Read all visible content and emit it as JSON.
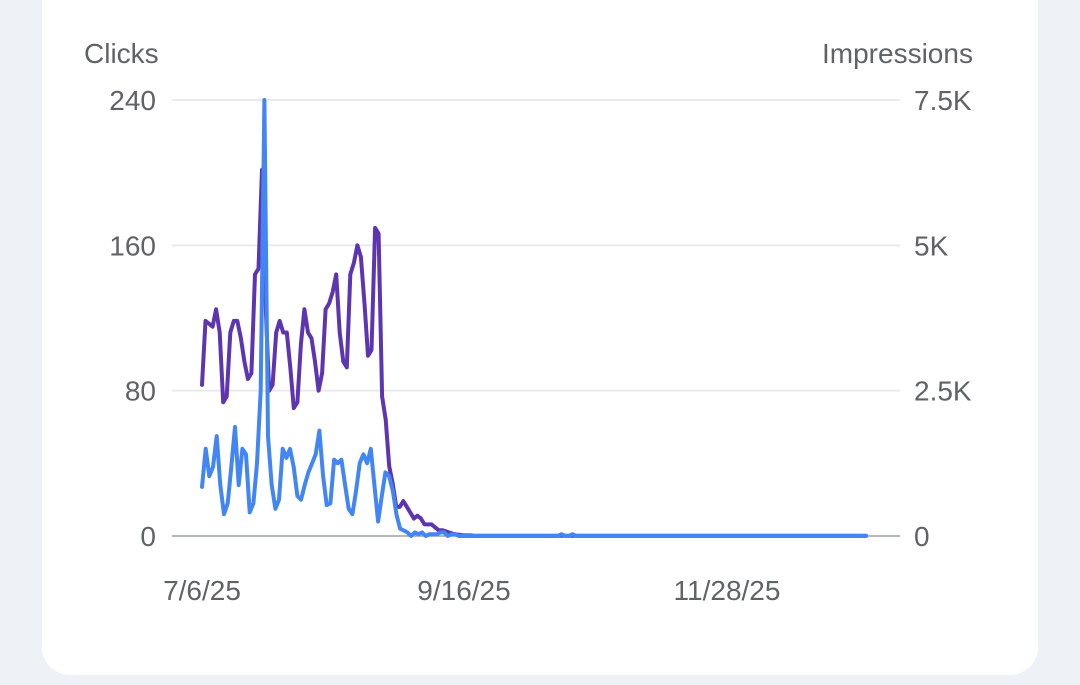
{
  "chart_data": {
    "type": "line",
    "y_left_label": "Clicks",
    "y_right_label": "Impressions",
    "y_left_ticks": [
      "0",
      "80",
      "160",
      "240"
    ],
    "y_right_ticks": [
      "0",
      "2.5K",
      "5K",
      "7.5K"
    ],
    "ylim_left": [
      0,
      240
    ],
    "ylim_right": [
      0,
      7500
    ],
    "x_tick_labels": [
      "7/6/25",
      "9/16/25",
      "11/28/25"
    ],
    "x_start_date": "7/6/25",
    "x_end_date": "1/1/26",
    "grid": true,
    "colors": {
      "clicks": "#4285f4",
      "impressions": "#5e35b1",
      "grid": "#e8eaed",
      "text": "#5f6368"
    },
    "series": [
      {
        "name": "Clicks",
        "axis": "left",
        "color": "#4285f4",
        "values": [
          27,
          48,
          33,
          38,
          55,
          28,
          12,
          18,
          38,
          60,
          28,
          48,
          45,
          13,
          18,
          40,
          80,
          240,
          55,
          28,
          15,
          20,
          48,
          43,
          48,
          38,
          22,
          20,
          28,
          35,
          40,
          45,
          58,
          33,
          17,
          18,
          42,
          40,
          42,
          28,
          15,
          12,
          25,
          40,
          45,
          40,
          48,
          28,
          8,
          22,
          35,
          33,
          25,
          12,
          4,
          3,
          2,
          0,
          2,
          1,
          2,
          0,
          1,
          1,
          1,
          2,
          2,
          0,
          1,
          1,
          0,
          0,
          0,
          0,
          0,
          0,
          0,
          0,
          0,
          0,
          0,
          0,
          0,
          0,
          0,
          0,
          0,
          0,
          0,
          0,
          0,
          0,
          0,
          0,
          0,
          0,
          0,
          0,
          1,
          0,
          0,
          1,
          0,
          0,
          0,
          0,
          0,
          0,
          0,
          0,
          0,
          0,
          0,
          0,
          0,
          0,
          0,
          0,
          0,
          0,
          0,
          0,
          0,
          0,
          0,
          0,
          0,
          0,
          0,
          0,
          0,
          0,
          0,
          0,
          0,
          0,
          0,
          0,
          0,
          0,
          0,
          0,
          0,
          0,
          0,
          0,
          0,
          0,
          0,
          0,
          0,
          0,
          0,
          0,
          0,
          0,
          0,
          0,
          0,
          0,
          0,
          0,
          0,
          0,
          0,
          0,
          0,
          0,
          0,
          0,
          0,
          0,
          0,
          0,
          0,
          0,
          0,
          0,
          0,
          0,
          0,
          0
        ]
      },
      {
        "name": "Impressions",
        "axis": "right",
        "color": "#5e35b1",
        "values": [
          2600,
          3700,
          3650,
          3600,
          3900,
          3500,
          2300,
          2400,
          3500,
          3700,
          3700,
          3400,
          3000,
          2700,
          2800,
          4500,
          4600,
          6300,
          4000,
          2500,
          2600,
          3500,
          3700,
          3500,
          3500,
          2900,
          2200,
          2300,
          3300,
          3900,
          3500,
          3400,
          3000,
          2500,
          2800,
          3900,
          4000,
          4200,
          4500,
          3500,
          3000,
          2900,
          4500,
          4700,
          5000,
          4800,
          4000,
          3100,
          3200,
          5300,
          5200,
          2400,
          2000,
          1200,
          900,
          500,
          500,
          600,
          500,
          400,
          300,
          350,
          300,
          200,
          200,
          200,
          150,
          100,
          100,
          80,
          60,
          40,
          30,
          20,
          10,
          10,
          10,
          5,
          5,
          5,
          5,
          5,
          5,
          5,
          5,
          5,
          5,
          5,
          5,
          5,
          5,
          5,
          5,
          5,
          5,
          5,
          5,
          5,
          5,
          5,
          5,
          5,
          5,
          5,
          5,
          5,
          5,
          5,
          5,
          5,
          5,
          5,
          5,
          5,
          5,
          5,
          5,
          5,
          5,
          5,
          5,
          5,
          5,
          5,
          5,
          5,
          5,
          5,
          5,
          5,
          5,
          5,
          5,
          5,
          5,
          5,
          5,
          5,
          5,
          5,
          5,
          5,
          5,
          5,
          5,
          5,
          5,
          5,
          5,
          5,
          5,
          5,
          5,
          5,
          5,
          5,
          5,
          5,
          5,
          5,
          5,
          5,
          5,
          5,
          5,
          5,
          5,
          5,
          5,
          5,
          5,
          5,
          5,
          5,
          5,
          5,
          5,
          5,
          5,
          5,
          5,
          5,
          5,
          5,
          5,
          5,
          5,
          5,
          5
        ]
      }
    ]
  }
}
